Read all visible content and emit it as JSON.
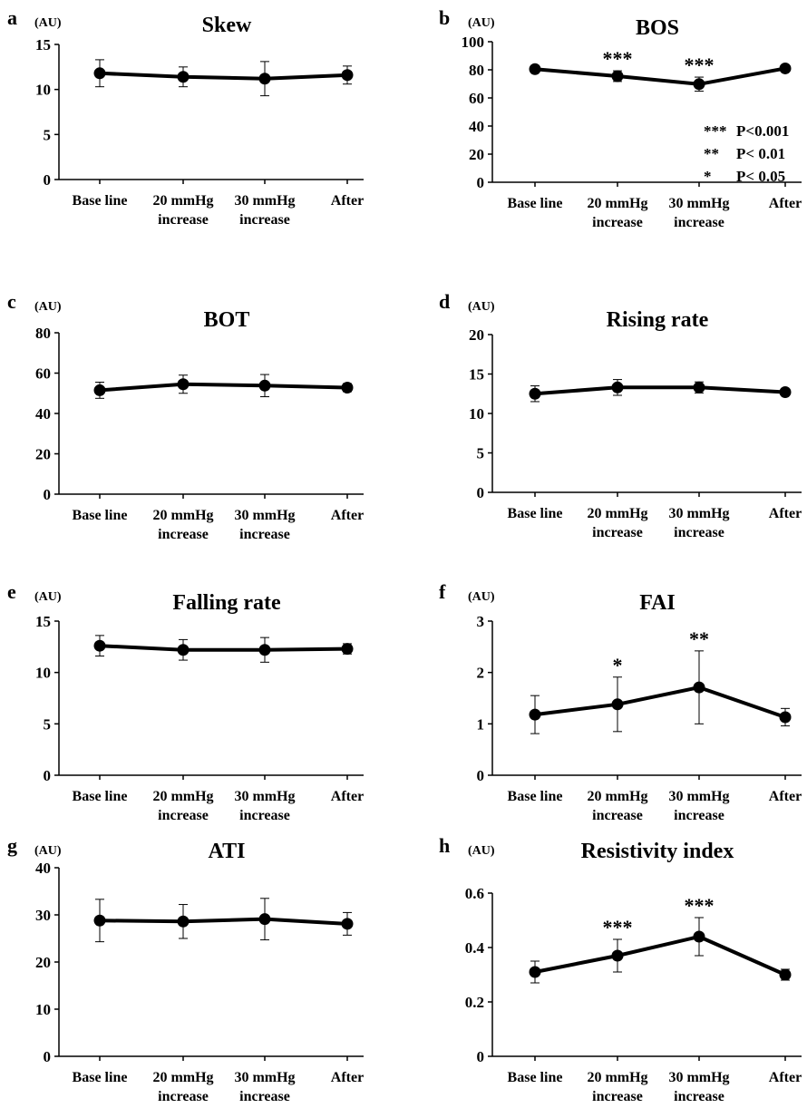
{
  "figure": {
    "category_labels": [
      [
        "Base line"
      ],
      [
        "20 mmHg",
        "increase"
      ],
      [
        "30 mmHg",
        "increase"
      ],
      [
        "After"
      ]
    ],
    "unit_label": "(AU)",
    "line_color": "#000000"
  },
  "chart_data": [
    {
      "type": "line",
      "panel": "a",
      "title": "Skew",
      "categories": [
        "Base line",
        "20 mmHg increase",
        "30 mmHg increase",
        "After"
      ],
      "values": [
        11.8,
        11.4,
        11.2,
        11.6
      ],
      "errors": [
        1.5,
        1.1,
        1.9,
        1.0
      ],
      "ylim": [
        0,
        15
      ],
      "yticks": [
        "0",
        "5",
        "10",
        "15"
      ],
      "ylabel": "(AU)",
      "significance": [
        "",
        "",
        "",
        ""
      ]
    },
    {
      "type": "line",
      "panel": "b",
      "title": "BOS",
      "categories": [
        "Base line",
        "20 mmHg increase",
        "30 mmHg increase",
        "After"
      ],
      "values": [
        80.5,
        75.5,
        69.8,
        81.0
      ],
      "errors": [
        1.5,
        3.8,
        5.0,
        1.5
      ],
      "ylim": [
        0,
        100
      ],
      "yticks": [
        "0",
        "20",
        "40",
        "60",
        "80",
        "100"
      ],
      "ylabel": "(AU)",
      "significance": [
        "",
        "***",
        "***",
        ""
      ],
      "legend": [
        {
          "stars": "***",
          "text": "P<0.001"
        },
        {
          "stars": "**",
          "text": "P<  0.01"
        },
        {
          "stars": "*",
          "text": "P<  0.05"
        }
      ]
    },
    {
      "type": "line",
      "panel": "c",
      "title": "BOT",
      "categories": [
        "Base line",
        "20 mmHg increase",
        "30 mmHg increase",
        "After"
      ],
      "values": [
        51.5,
        54.5,
        53.8,
        52.8
      ],
      "errors": [
        4.0,
        4.5,
        5.5,
        2.0
      ],
      "ylim": [
        0,
        80
      ],
      "yticks": [
        "0",
        "20",
        "40",
        "60",
        "80"
      ],
      "ylabel": "(AU)",
      "significance": [
        "",
        "",
        "",
        ""
      ]
    },
    {
      "type": "line",
      "panel": "d",
      "title": "Rising rate",
      "categories": [
        "Base line",
        "20 mmHg increase",
        "30 mmHg increase",
        "After"
      ],
      "values": [
        12.5,
        13.3,
        13.3,
        12.7
      ],
      "errors": [
        1.0,
        1.0,
        0.7,
        0.4
      ],
      "ylim": [
        0,
        20
      ],
      "yticks": [
        "0",
        "5",
        "10",
        "15",
        "20"
      ],
      "ylabel": "(AU)",
      "significance": [
        "",
        "",
        "",
        ""
      ]
    },
    {
      "type": "line",
      "panel": "e",
      "title": "Falling rate",
      "categories": [
        "Base line",
        "20 mmHg increase",
        "30 mmHg increase",
        "After"
      ],
      "values": [
        12.6,
        12.2,
        12.2,
        12.3
      ],
      "errors": [
        1.0,
        1.0,
        1.2,
        0.5
      ],
      "ylim": [
        0,
        15
      ],
      "yticks": [
        "0",
        "5",
        "10",
        "15"
      ],
      "ylabel": "(AU)",
      "significance": [
        "",
        "",
        "",
        ""
      ]
    },
    {
      "type": "line",
      "panel": "f",
      "title": "FAI",
      "categories": [
        "Base line",
        "20 mmHg increase",
        "30 mmHg increase",
        "After"
      ],
      "values": [
        1.18,
        1.38,
        1.71,
        1.13
      ],
      "errors": [
        0.37,
        0.53,
        0.71,
        0.17
      ],
      "ylim": [
        0,
        3
      ],
      "yticks": [
        "0",
        "1",
        "2",
        "3"
      ],
      "ylabel": "(AU)",
      "significance": [
        "",
        "*",
        "**",
        ""
      ]
    },
    {
      "type": "line",
      "panel": "g",
      "title": "ATI",
      "categories": [
        "Base line",
        "20 mmHg increase",
        "30 mmHg increase",
        "After"
      ],
      "values": [
        28.8,
        28.6,
        29.1,
        28.1
      ],
      "errors": [
        4.5,
        3.6,
        4.4,
        2.4
      ],
      "ylim": [
        0,
        40
      ],
      "yticks": [
        "0",
        "10",
        "20",
        "30",
        "40"
      ],
      "ylabel": "(AU)",
      "significance": [
        "",
        "",
        "",
        ""
      ]
    },
    {
      "type": "line",
      "panel": "h",
      "title": "Resistivity index",
      "categories": [
        "Base line",
        "20 mmHg increase",
        "30 mmHg increase",
        "After"
      ],
      "values": [
        0.31,
        0.37,
        0.44,
        0.3
      ],
      "errors": [
        0.04,
        0.06,
        0.07,
        0.02
      ],
      "ylim": [
        0,
        0.6
      ],
      "yticks": [
        "0",
        "0.2",
        "0.4",
        "0.6"
      ],
      "ylabel": "(AU)",
      "significance": [
        "",
        "***",
        "***",
        ""
      ]
    }
  ]
}
